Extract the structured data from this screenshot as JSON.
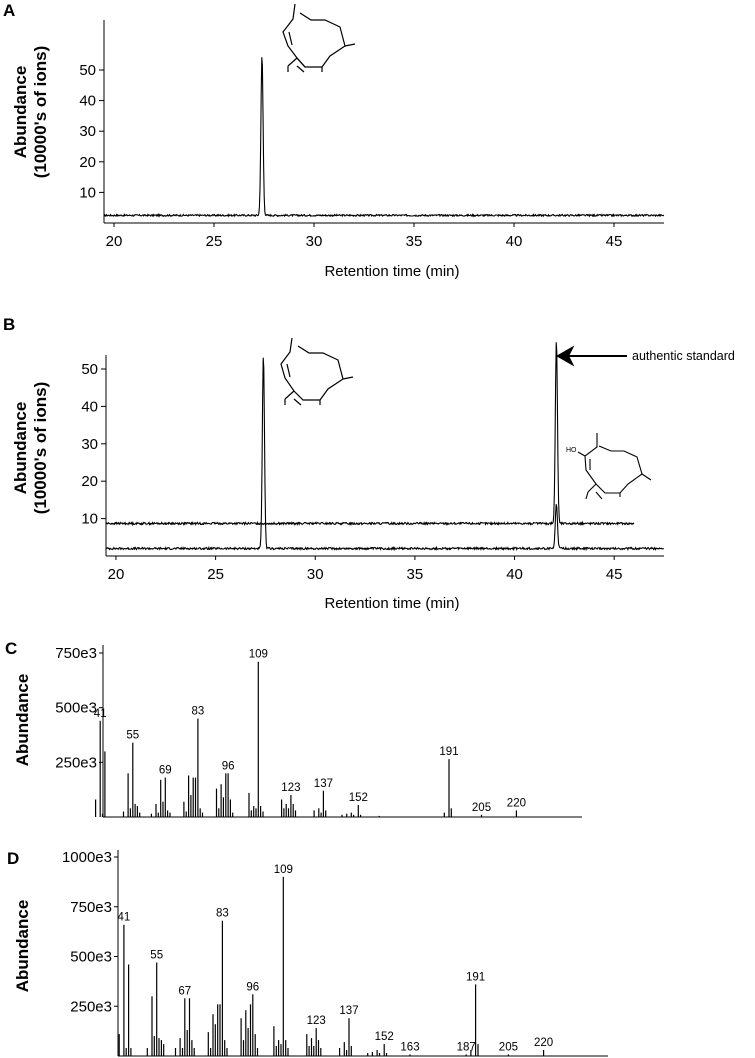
{
  "chart_data": [
    {
      "type": "line",
      "panel": "A",
      "xlabel": "Retention time (min)",
      "ylabel_lines": [
        "Abundance",
        "(10000's of ions)"
      ],
      "xlim": [
        19.5,
        47.5
      ],
      "ylim": [
        0,
        55
      ],
      "xticks": [
        20,
        25,
        30,
        35,
        40,
        45
      ],
      "yticks": [
        10,
        20,
        30,
        40,
        50
      ],
      "series": [
        {
          "baseline": 2.5,
          "peaks": [
            {
              "x": 27.4,
              "height": 55
            }
          ]
        }
      ]
    },
    {
      "type": "line",
      "panel": "B",
      "xlabel": "Retention time (min)",
      "ylabel_lines": [
        "Abundance",
        "(10000's of ions)"
      ],
      "xlim": [
        19.5,
        47.5
      ],
      "ylim": [
        0,
        55
      ],
      "xticks": [
        20,
        25,
        30,
        35,
        40,
        45
      ],
      "yticks": [
        10,
        20,
        30,
        40,
        50
      ],
      "annotations": [
        "authentic standard"
      ],
      "series": [
        {
          "baseline": 2.0,
          "x_end": 47.5,
          "peaks": [
            {
              "x": 27.4,
              "height": 54
            },
            {
              "x": 42.1,
              "height": 14
            }
          ]
        },
        {
          "baseline": 8.7,
          "x_end": 46.0,
          "peaks": [
            {
              "x": 42.1,
              "height": 58
            }
          ]
        }
      ]
    },
    {
      "type": "bar",
      "panel": "C",
      "ylabel": "Abundance",
      "xlim": [
        30,
        230
      ],
      "ylim": [
        0,
        750000
      ],
      "yticks": [
        250000,
        500000,
        750000
      ],
      "ytick_labels": [
        "250e3",
        "500e3",
        "750e3"
      ],
      "labeled_peaks": [
        {
          "mz": "41",
          "value": 440000
        },
        {
          "mz": "55",
          "value": 340000
        },
        {
          "mz": "69",
          "value": 180000
        },
        {
          "mz": "83",
          "value": 450000
        },
        {
          "mz": "96",
          "value": 200000
        },
        {
          "mz": "109",
          "value": 710000
        },
        {
          "mz": "123",
          "value": 100000
        },
        {
          "mz": "137",
          "value": 120000
        },
        {
          "mz": "152",
          "value": 55000
        },
        {
          "mz": "191",
          "value": 265000
        },
        {
          "mz": "205",
          "value": 10000
        },
        {
          "mz": "220",
          "value": 30000
        }
      ],
      "peaks": [
        [
          39,
          80000
        ],
        [
          41,
          440000
        ],
        [
          42,
          15000
        ],
        [
          43,
          300000
        ],
        [
          51,
          25000
        ],
        [
          53,
          200000
        ],
        [
          54,
          40000
        ],
        [
          55,
          340000
        ],
        [
          56,
          60000
        ],
        [
          57,
          50000
        ],
        [
          58,
          20000
        ],
        [
          63,
          15000
        ],
        [
          65,
          60000
        ],
        [
          66,
          20000
        ],
        [
          67,
          170000
        ],
        [
          68,
          70000
        ],
        [
          69,
          180000
        ],
        [
          70,
          30000
        ],
        [
          71,
          20000
        ],
        [
          77,
          70000
        ],
        [
          78,
          25000
        ],
        [
          79,
          190000
        ],
        [
          80,
          100000
        ],
        [
          81,
          180000
        ],
        [
          82,
          180000
        ],
        [
          83,
          450000
        ],
        [
          84,
          40000
        ],
        [
          85,
          20000
        ],
        [
          91,
          130000
        ],
        [
          92,
          40000
        ],
        [
          93,
          150000
        ],
        [
          94,
          90000
        ],
        [
          95,
          200000
        ],
        [
          96,
          200000
        ],
        [
          97,
          80000
        ],
        [
          98,
          20000
        ],
        [
          105,
          110000
        ],
        [
          106,
          30000
        ],
        [
          107,
          50000
        ],
        [
          108,
          40000
        ],
        [
          109,
          710000
        ],
        [
          110,
          50000
        ],
        [
          111,
          25000
        ],
        [
          119,
          80000
        ],
        [
          120,
          40000
        ],
        [
          121,
          60000
        ],
        [
          122,
          40000
        ],
        [
          123,
          100000
        ],
        [
          124,
          60000
        ],
        [
          125,
          30000
        ],
        [
          133,
          30000
        ],
        [
          135,
          40000
        ],
        [
          136,
          20000
        ],
        [
          137,
          120000
        ],
        [
          138,
          30000
        ],
        [
          145,
          10000
        ],
        [
          147,
          15000
        ],
        [
          149,
          20000
        ],
        [
          150,
          10000
        ],
        [
          152,
          55000
        ],
        [
          153,
          10000
        ],
        [
          161,
          5000
        ],
        [
          189,
          20000
        ],
        [
          191,
          265000
        ],
        [
          192,
          40000
        ],
        [
          205,
          10000
        ],
        [
          220,
          30000
        ]
      ]
    },
    {
      "type": "bar",
      "panel": "D",
      "ylabel": "Abundance",
      "xlim": [
        30,
        230
      ],
      "ylim": [
        0,
        1000000
      ],
      "yticks": [
        250000,
        500000,
        750000,
        1000000
      ],
      "ytick_labels": [
        "250e3",
        "500e3",
        "750e3",
        "1000e3"
      ],
      "labeled_peaks": [
        {
          "mz": "41",
          "value": 660000
        },
        {
          "mz": "55",
          "value": 470000
        },
        {
          "mz": "67",
          "value": 290000
        },
        {
          "mz": "83",
          "value": 680000
        },
        {
          "mz": "96",
          "value": 310000
        },
        {
          "mz": "109",
          "value": 900000
        },
        {
          "mz": "123",
          "value": 140000
        },
        {
          "mz": "137",
          "value": 190000
        },
        {
          "mz": "152",
          "value": 60000
        },
        {
          "mz": "163",
          "value": 8000
        },
        {
          "mz": "187",
          "value": 8000
        },
        {
          "mz": "191",
          "value": 360000
        },
        {
          "mz": "205",
          "value": 8000
        },
        {
          "mz": "220",
          "value": 30000
        }
      ],
      "peaks": [
        [
          39,
          110000
        ],
        [
          41,
          660000
        ],
        [
          42,
          40000
        ],
        [
          43,
          460000
        ],
        [
          44,
          40000
        ],
        [
          51,
          40000
        ],
        [
          53,
          300000
        ],
        [
          54,
          100000
        ],
        [
          55,
          470000
        ],
        [
          56,
          90000
        ],
        [
          57,
          80000
        ],
        [
          58,
          60000
        ],
        [
          63,
          40000
        ],
        [
          65,
          90000
        ],
        [
          66,
          40000
        ],
        [
          67,
          290000
        ],
        [
          68,
          130000
        ],
        [
          69,
          290000
        ],
        [
          70,
          80000
        ],
        [
          71,
          40000
        ],
        [
          77,
          120000
        ],
        [
          78,
          40000
        ],
        [
          79,
          210000
        ],
        [
          80,
          160000
        ],
        [
          81,
          260000
        ],
        [
          82,
          260000
        ],
        [
          83,
          680000
        ],
        [
          84,
          80000
        ],
        [
          85,
          40000
        ],
        [
          91,
          190000
        ],
        [
          92,
          80000
        ],
        [
          93,
          230000
        ],
        [
          94,
          140000
        ],
        [
          95,
          260000
        ],
        [
          96,
          310000
        ],
        [
          97,
          110000
        ],
        [
          98,
          40000
        ],
        [
          105,
          150000
        ],
        [
          106,
          50000
        ],
        [
          107,
          80000
        ],
        [
          108,
          60000
        ],
        [
          109,
          900000
        ],
        [
          110,
          80000
        ],
        [
          111,
          40000
        ],
        [
          119,
          110000
        ],
        [
          120,
          50000
        ],
        [
          121,
          90000
        ],
        [
          122,
          50000
        ],
        [
          123,
          140000
        ],
        [
          124,
          80000
        ],
        [
          125,
          40000
        ],
        [
          133,
          40000
        ],
        [
          135,
          70000
        ],
        [
          136,
          30000
        ],
        [
          137,
          190000
        ],
        [
          138,
          50000
        ],
        [
          145,
          15000
        ],
        [
          147,
          20000
        ],
        [
          149,
          30000
        ],
        [
          150,
          15000
        ],
        [
          152,
          60000
        ],
        [
          153,
          15000
        ],
        [
          163,
          8000
        ],
        [
          187,
          8000
        ],
        [
          189,
          30000
        ],
        [
          191,
          360000
        ],
        [
          192,
          60000
        ],
        [
          205,
          8000
        ],
        [
          220,
          30000
        ]
      ]
    }
  ]
}
